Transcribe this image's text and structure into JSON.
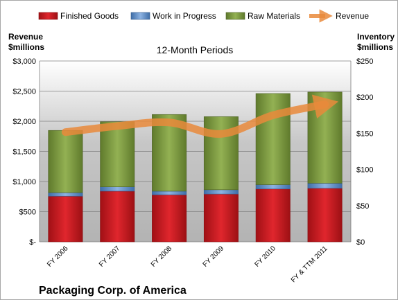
{
  "chart_data": {
    "type": "bar",
    "stacked": true,
    "title": "12-Month Periods",
    "company": "Packaging Corp. of America",
    "categories": [
      "FY 2006",
      "FY 2007",
      "FY 2008",
      "FY 2009",
      "FY 2010",
      "FY & TTM 2011"
    ],
    "left_axis": {
      "label_line1": "Revenue",
      "label_line2": "$millions",
      "ylim": [
        0,
        3000
      ],
      "ticks": [
        "$-",
        "$500",
        "$1,000",
        "$1,500",
        "$2,000",
        "$2,500",
        "$3,000"
      ]
    },
    "right_axis": {
      "label_line1": "Inventory",
      "label_line2": "$millions",
      "ylim": [
        0,
        250
      ],
      "ticks": [
        "$0",
        "$50",
        "$100",
        "$150",
        "$200",
        "$250"
      ]
    },
    "series": [
      {
        "name": "Finished Goods",
        "axis": "right",
        "color": "#c0161d",
        "values": [
          63,
          70,
          65,
          66,
          73,
          74
        ]
      },
      {
        "name": "Work in Progress",
        "axis": "right",
        "color": "#4f81bd",
        "values": [
          5,
          6,
          5,
          6,
          6,
          7
        ]
      },
      {
        "name": "Raw Materials",
        "axis": "right",
        "color": "#77933c",
        "values": [
          86,
          90,
          106,
          101,
          126,
          126
        ]
      },
      {
        "name": "Revenue",
        "axis": "left",
        "type": "line",
        "color": "#e98a3b",
        "values": [
          1820,
          1920,
          1980,
          1790,
          2100,
          2280
        ]
      }
    ],
    "grid": true,
    "legend": "top"
  }
}
